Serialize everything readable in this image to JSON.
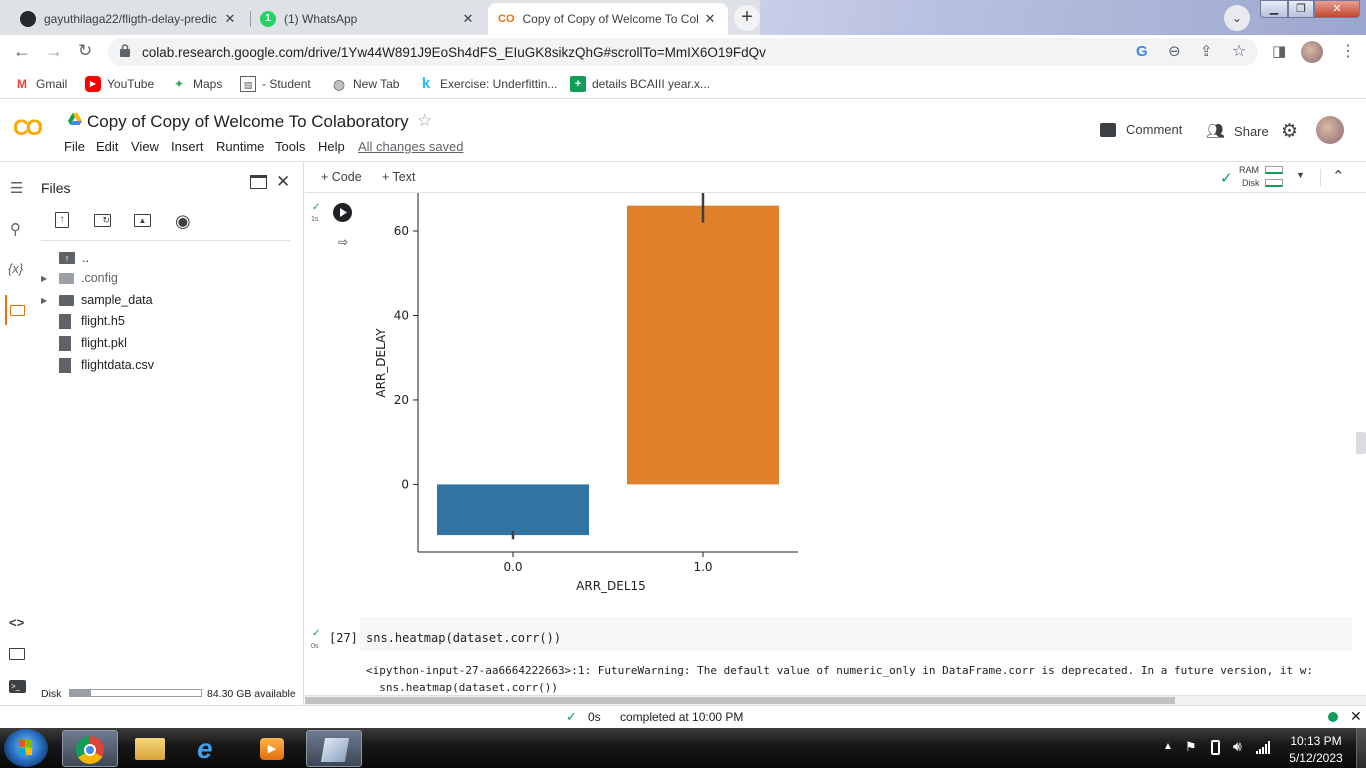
{
  "browser": {
    "tabs": [
      {
        "title": "gayuthilaga22/fligth-delay-predic",
        "active": false
      },
      {
        "title": "(1) WhatsApp",
        "active": false
      },
      {
        "title": "Copy of Copy of Welcome To Col",
        "active": true
      }
    ],
    "url": "colab.research.google.com/drive/1Yw44W891J9EoSh4dFS_EIuGK8sikzQhG#scrollTo=MmIX6O19FdQv",
    "bookmarks": [
      {
        "label": "Gmail",
        "icon": "gmail-icon"
      },
      {
        "label": "YouTube",
        "icon": "youtube-icon"
      },
      {
        "label": "Maps",
        "icon": "maps-icon"
      },
      {
        "label": "- Student",
        "icon": "student-icon"
      },
      {
        "label": "New Tab",
        "icon": "globe-icon"
      },
      {
        "label": "Exercise: Underfittin...",
        "icon": "kaggle-icon"
      },
      {
        "label": "details BCAIII year.x...",
        "icon": "sheets-icon"
      }
    ]
  },
  "colab": {
    "logo": "CO",
    "notebook_title": "Copy of Copy of Welcome To Colaboratory",
    "menu": [
      "File",
      "Edit",
      "View",
      "Insert",
      "Runtime",
      "Tools",
      "Help"
    ],
    "save_status": "All changes saved",
    "comment_label": "Comment",
    "share_label": "Share",
    "add_code_label": "+ Code",
    "add_text_label": "+ Text",
    "ram_label": "RAM",
    "disk_label": "Disk"
  },
  "files_panel": {
    "title": "Files",
    "parent_dir": "..",
    "items": [
      {
        "name": ".config",
        "type": "folder"
      },
      {
        "name": "sample_data",
        "type": "folder"
      },
      {
        "name": "flight.h5",
        "type": "file"
      },
      {
        "name": "flight.pkl",
        "type": "file"
      },
      {
        "name": "flightdata.csv",
        "type": "file"
      }
    ],
    "disk_label": "Disk",
    "disk_available": "84.30 GB available",
    "disk_used_fraction": 0.16
  },
  "cells": {
    "prev_exec_time": "1s",
    "code_cell_number": "[27]",
    "code_cell_source": "sns.heatmap(dataset.corr())",
    "code_exec_time": "0s",
    "warning_line1": "<ipython-input-27-aa6664222663>:1: FutureWarning: The default value of numeric_only in DataFrame.corr is deprecated. In a future version, it w:",
    "warning_line2": "  sns.heatmap(dataset.corr())"
  },
  "chart_data": {
    "type": "bar",
    "categories": [
      "0.0",
      "1.0"
    ],
    "values": [
      -12,
      66
    ],
    "error_bars": [
      [
        -13,
        -11
      ],
      [
        62,
        69
      ]
    ],
    "colors": [
      "#3274a1",
      "#e1812c"
    ],
    "xlabel": "ARR_DEL15",
    "ylabel": "ARR_DELAY",
    "yticks": [
      0,
      20,
      40,
      60
    ],
    "ylim": [
      -16,
      69
    ]
  },
  "status": {
    "exec_time": "0s",
    "message": "completed at 10:00 PM"
  },
  "taskbar": {
    "time": "10:13 PM",
    "date": "5/12/2023"
  }
}
